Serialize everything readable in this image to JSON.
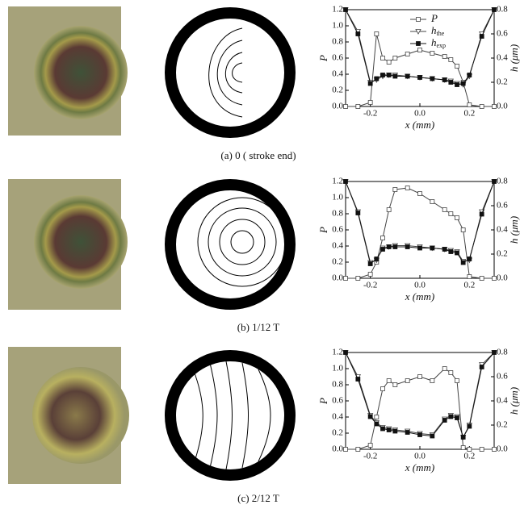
{
  "chart_data": [
    {
      "type": "line",
      "caption": "(a) 0 ( stroke end)",
      "xlabel": "x (mm)",
      "ylabel": "P",
      "y2label": "h (μm)",
      "x": [
        -0.3,
        -0.25,
        -0.2,
        -0.175,
        -0.15,
        -0.125,
        -0.1,
        -0.05,
        0,
        0.05,
        0.1,
        0.125,
        0.15,
        0.175,
        0.2,
        0.25,
        0.3
      ],
      "xlim": [
        -0.3,
        0.3
      ],
      "xticks": [
        -0.2,
        {
          "value": 0,
          "label": "0.0"
        },
        0.2
      ],
      "ylim": [
        0,
        1.2
      ],
      "yticks": [
        {
          "value": 0,
          "label": "0.0"
        },
        0.2,
        0.4,
        0.6,
        0.8,
        {
          "value": 1,
          "label": "1.0"
        },
        1.2
      ],
      "y2lim": [
        0,
        0.8
      ],
      "y2ticks": [
        {
          "value": 0,
          "label": "0.0"
        },
        0.2,
        0.4,
        0.6,
        0.8
      ],
      "legend": "upper right",
      "series": [
        {
          "name": "P",
          "color": "#444",
          "marker": "square-open",
          "values": [
            0,
            0,
            0.05,
            0.9,
            0.6,
            0.55,
            0.6,
            0.65,
            0.7,
            0.66,
            0.62,
            0.58,
            0.5,
            0.3,
            0.02,
            0,
            0
          ]
        },
        {
          "name": "h",
          "name_sub": "the",
          "color": "#444",
          "marker": "triangle-open",
          "axis": "y2",
          "values": [
            0.8,
            0.62,
            0.2,
            0.22,
            0.25,
            0.26,
            0.26,
            0.25,
            0.24,
            0.23,
            0.22,
            0.21,
            0.19,
            0.18,
            0.25,
            0.6,
            0.8
          ]
        },
        {
          "name": "h",
          "name_sub": "exp",
          "color": "#111",
          "marker": "square",
          "axis": "y2",
          "values": [
            0.8,
            0.6,
            0.19,
            0.23,
            0.26,
            0.26,
            0.25,
            0.25,
            0.24,
            0.23,
            0.22,
            0.2,
            0.18,
            0.19,
            0.26,
            0.58,
            0.8
          ]
        }
      ]
    },
    {
      "type": "line",
      "caption": "(b) 1/12 T",
      "xlabel": "x (mm)",
      "ylabel": "P",
      "y2label": "h (μm)",
      "x": [
        -0.3,
        -0.25,
        -0.2,
        -0.175,
        -0.15,
        -0.125,
        -0.1,
        -0.05,
        0,
        0.05,
        0.1,
        0.125,
        0.15,
        0.175,
        0.2,
        0.25,
        0.3
      ],
      "xlim": [
        -0.3,
        0.3
      ],
      "xticks": [
        -0.2,
        {
          "value": 0,
          "label": "0.0"
        },
        0.2
      ],
      "ylim": [
        0,
        1.2
      ],
      "yticks": [
        {
          "value": 0,
          "label": "0.0"
        },
        0.2,
        0.4,
        0.6,
        0.8,
        {
          "value": 1,
          "label": "1.0"
        },
        1.2
      ],
      "y2lim": [
        0,
        0.8
      ],
      "y2ticks": [
        {
          "value": 0,
          "label": "0.0"
        },
        0.2,
        0.4,
        0.6,
        0.8
      ],
      "series": [
        {
          "color": "#444",
          "marker": "square-open",
          "values": [
            0,
            0,
            0.05,
            0.2,
            0.5,
            0.85,
            1.1,
            1.12,
            1.05,
            0.95,
            0.85,
            0.8,
            0.75,
            0.6,
            0.02,
            0,
            0
          ]
        },
        {
          "color": "#444",
          "marker": "triangle-open",
          "axis": "y2",
          "values": [
            0.8,
            0.55,
            0.13,
            0.15,
            0.25,
            0.26,
            0.27,
            0.27,
            0.26,
            0.25,
            0.24,
            0.23,
            0.22,
            0.14,
            0.15,
            0.55,
            0.8
          ]
        },
        {
          "color": "#111",
          "marker": "square",
          "axis": "y2",
          "values": [
            0.8,
            0.54,
            0.12,
            0.16,
            0.24,
            0.26,
            0.26,
            0.26,
            0.25,
            0.25,
            0.24,
            0.22,
            0.21,
            0.13,
            0.16,
            0.53,
            0.8
          ]
        }
      ]
    },
    {
      "type": "line",
      "caption": "(c) 2/12 T",
      "xlabel": "x (mm)",
      "ylabel": "P",
      "y2label": "h (μm)",
      "x": [
        -0.3,
        -0.25,
        -0.2,
        -0.175,
        -0.15,
        -0.125,
        -0.1,
        -0.05,
        0,
        0.05,
        0.1,
        0.125,
        0.15,
        0.175,
        0.2,
        0.25,
        0.3
      ],
      "xlim": [
        -0.3,
        0.3
      ],
      "xticks": [
        -0.2,
        {
          "value": 0,
          "label": "0.0"
        },
        0.2
      ],
      "ylim": [
        0,
        1.2
      ],
      "yticks": [
        {
          "value": 0,
          "label": "0.0"
        },
        0.2,
        0.4,
        0.6,
        0.8,
        {
          "value": 1,
          "label": "1.0"
        },
        1.2
      ],
      "y2lim": [
        0,
        0.8
      ],
      "y2ticks": [
        {
          "value": 0,
          "label": "0.0"
        },
        0.2,
        0.4,
        0.6,
        0.8
      ],
      "series": [
        {
          "color": "#444",
          "marker": "square-open",
          "values": [
            0,
            0,
            0.05,
            0.4,
            0.75,
            0.85,
            0.8,
            0.85,
            0.9,
            0.85,
            1.0,
            0.95,
            0.85,
            0.02,
            0,
            0,
            0
          ]
        },
        {
          "color": "#444",
          "marker": "triangle-open",
          "axis": "y2",
          "values": [
            0.8,
            0.6,
            0.28,
            0.22,
            0.18,
            0.17,
            0.16,
            0.15,
            0.13,
            0.12,
            0.25,
            0.28,
            0.27,
            0.1,
            0.2,
            0.7,
            0.8
          ]
        },
        {
          "color": "#111",
          "marker": "square",
          "axis": "y2",
          "values": [
            0.8,
            0.58,
            0.27,
            0.21,
            0.17,
            0.16,
            0.15,
            0.14,
            0.12,
            0.11,
            0.24,
            0.27,
            0.26,
            0.1,
            0.19,
            0.68,
            0.8
          ]
        }
      ]
    }
  ]
}
